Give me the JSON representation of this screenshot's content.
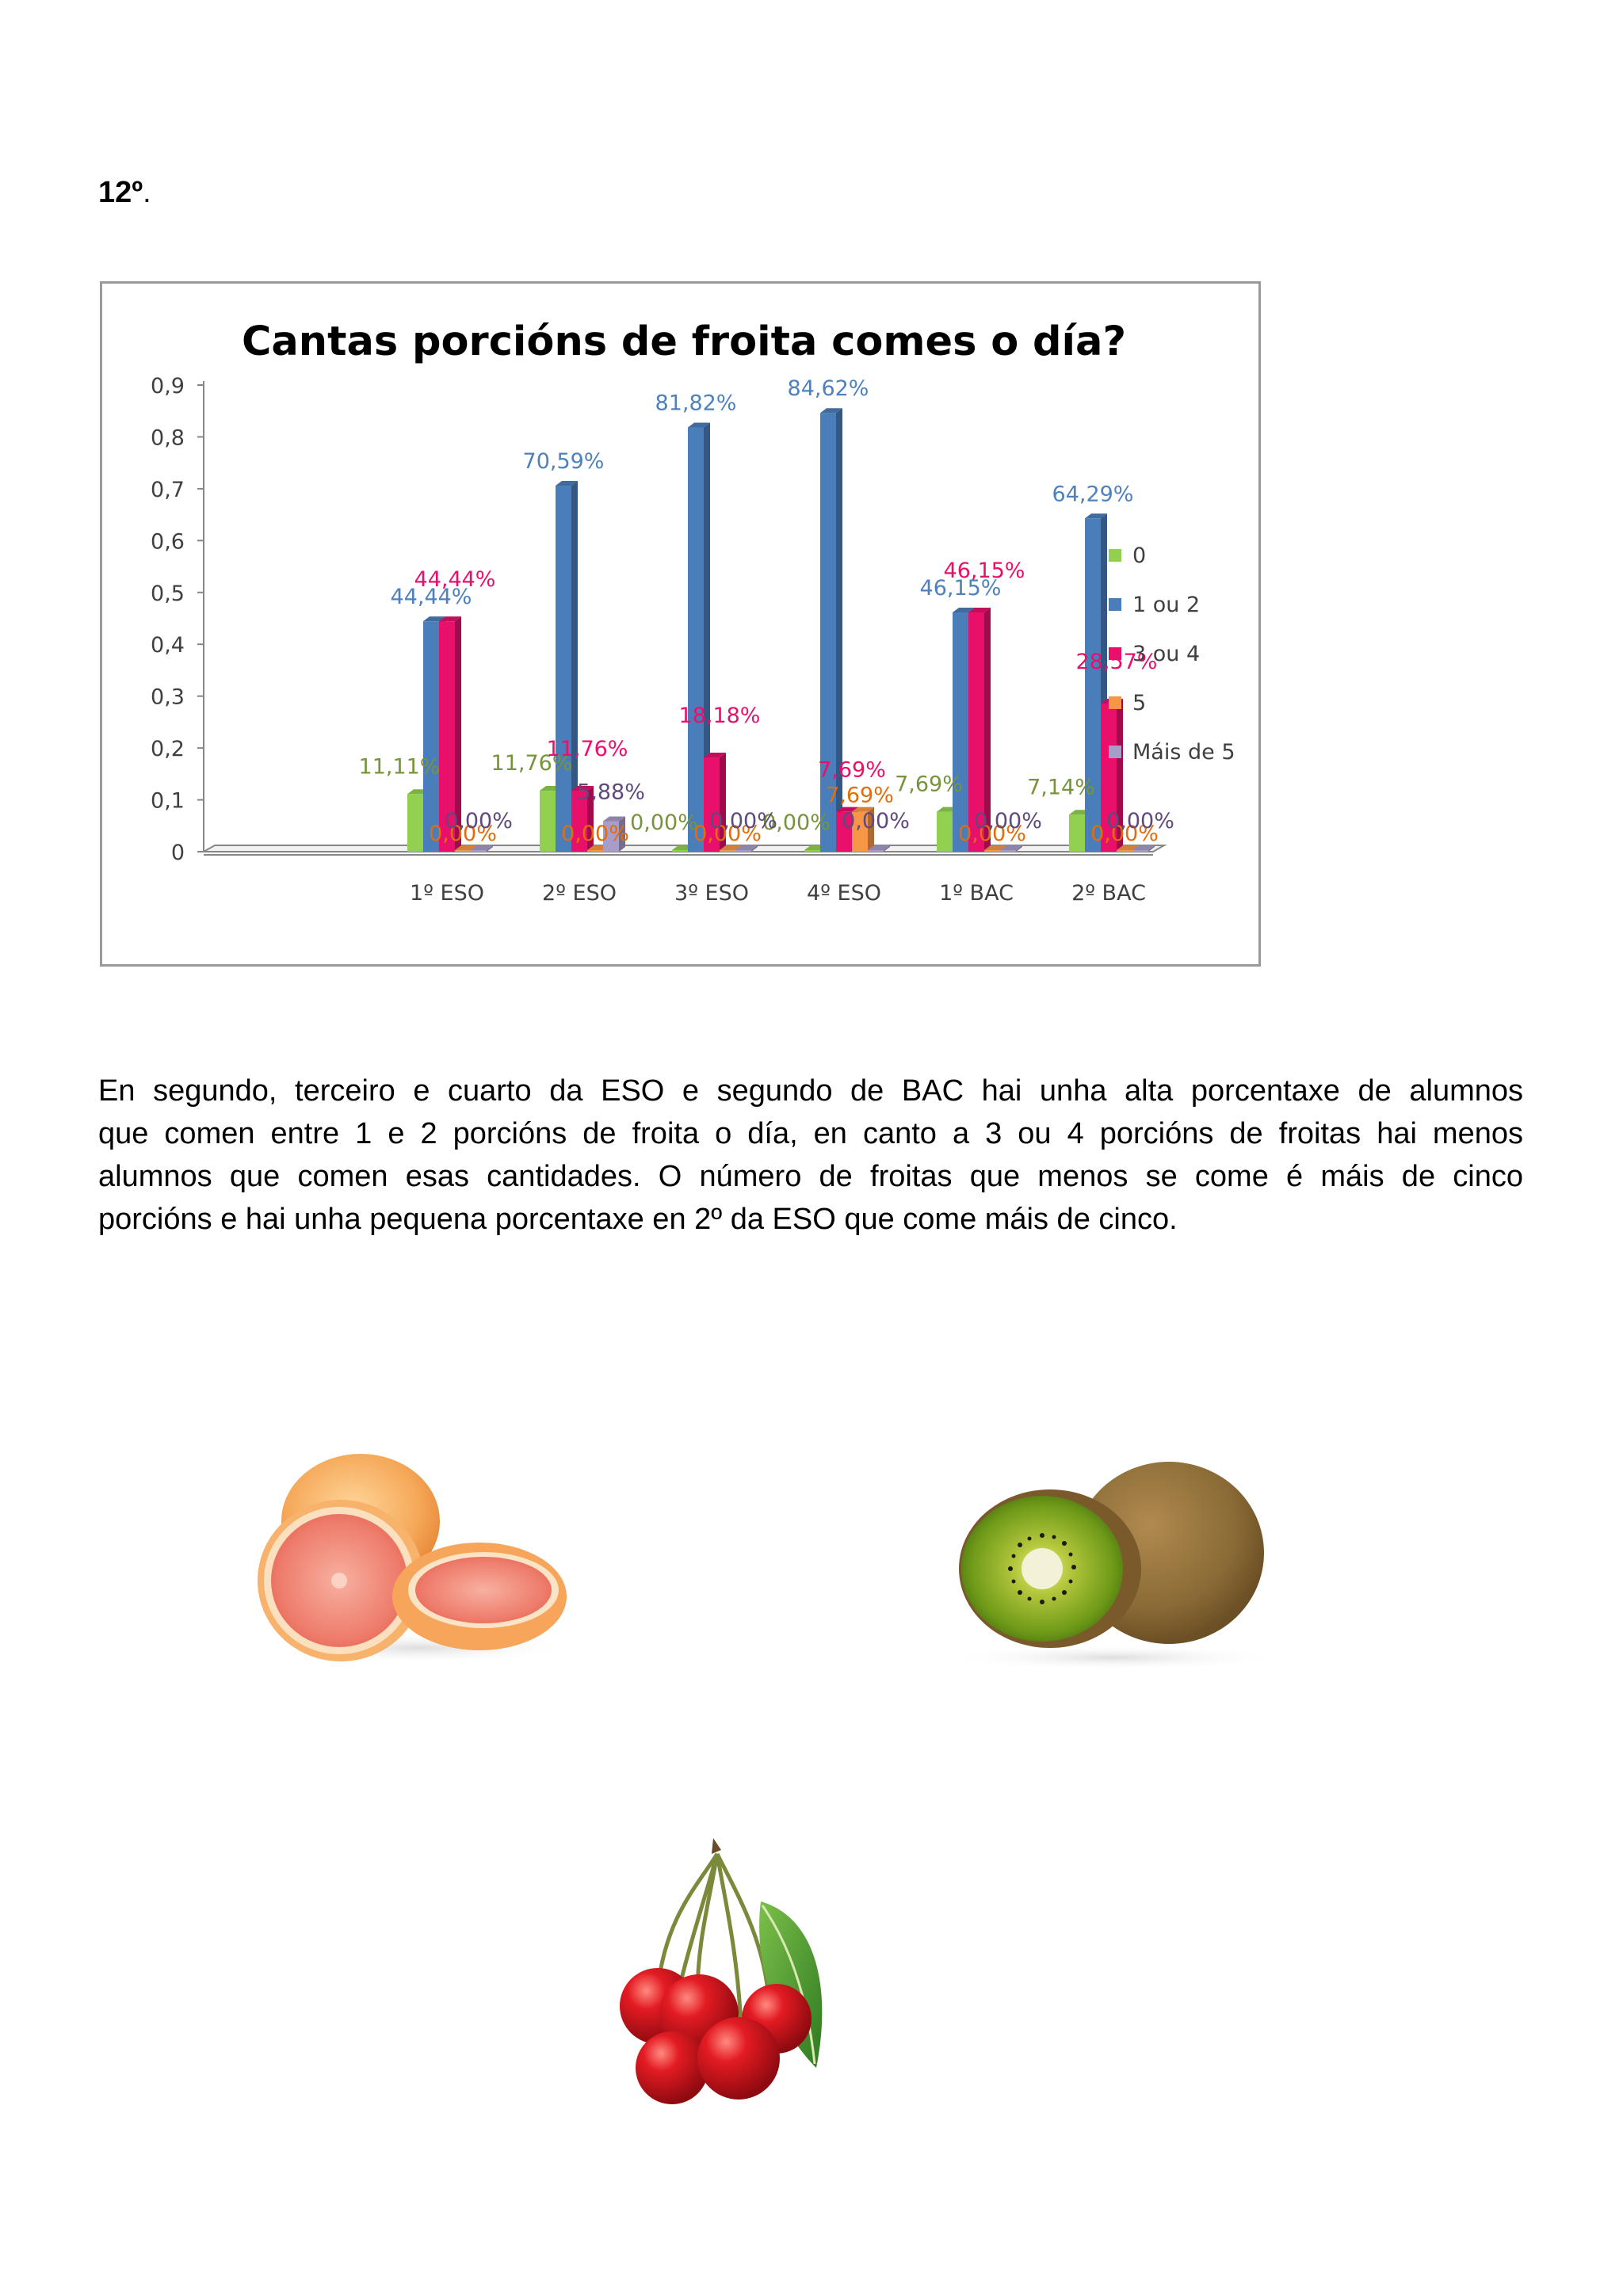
{
  "heading": {
    "number": "12º",
    "suffix": "."
  },
  "chart_data": {
    "type": "bar",
    "title": "Cantas porcións de froita comes o día?",
    "categories": [
      "1º ESO",
      "2º ESO",
      "3º ESO",
      "4º ESO",
      "1º BAC",
      "2º BAC"
    ],
    "ylim": [
      0,
      0.9
    ],
    "yticks": [
      "0",
      "0,1",
      "0,2",
      "0,3",
      "0,4",
      "0,5",
      "0,6",
      "0,7",
      "0,8",
      "0,9"
    ],
    "legend_position": "right",
    "series": [
      {
        "name": "0",
        "color": "#92d050",
        "labelColor": "#77933c",
        "values": [
          0.1111,
          0.1176,
          0.0,
          0.0,
          0.0769,
          0.0714
        ],
        "labels": [
          "11,11%",
          "11,76%",
          "0,00%",
          "0,00%",
          "7,69%",
          "7,14%"
        ]
      },
      {
        "name": "1 ou 2",
        "color": "#4a7ebb",
        "labelColor": "#4f81bd",
        "values": [
          0.4444,
          0.7059,
          0.8182,
          0.8462,
          0.4615,
          0.6429
        ],
        "labels": [
          "44,44%",
          "70,59%",
          "81,82%",
          "84,62%",
          "46,15%",
          "64,29%"
        ]
      },
      {
        "name": "3 ou 4",
        "color": "#e8106b",
        "labelColor": "#e8106b",
        "values": [
          0.4444,
          0.1176,
          0.1818,
          0.0769,
          0.4615,
          0.2857
        ],
        "labels": [
          "44,44%",
          "11,76%",
          "18,18%",
          "7,69%",
          "46,15%",
          "28,57%"
        ]
      },
      {
        "name": "5",
        "color": "#f79646",
        "labelColor": "#e46c0a",
        "values": [
          0.0,
          0.0,
          0.0,
          0.0769,
          0.0,
          0.0
        ],
        "labels": [
          "0,00%",
          "0,00%",
          "0,00%",
          "7,69%",
          "0,00%",
          "0,00%"
        ]
      },
      {
        "name": "Máis de 5",
        "color": "#a89cc8",
        "labelColor": "#604a7b",
        "values": [
          0.0,
          0.0588,
          0.0,
          0.0,
          0.0,
          0.0
        ],
        "labels": [
          "0,00%",
          "5,88%",
          "0,00%",
          "0,00%",
          "0,00%",
          "0,00%"
        ]
      }
    ]
  },
  "paragraph": {
    "lines": [
      "En segundo, terceiro e cuarto da ESO e segundo de BAC hai unha alta porcentaxe de alumnos",
      "que comen entre 1 e 2 porcións de froita o día, en canto a 3 ou 4 porcións de froitas hai menos",
      "alumnos que comen esas cantidades. O número de froitas que menos se come é máis de cinco",
      "porcións e hai unha pequena porcentaxe en 2º da ESO que come máis de cinco."
    ]
  },
  "images": [
    "grapefruit-image",
    "kiwi-image",
    "cherries-image"
  ]
}
